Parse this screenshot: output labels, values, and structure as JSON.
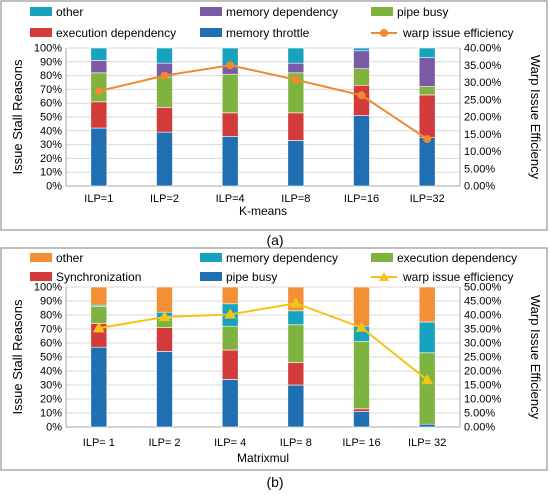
{
  "chart_data": [
    {
      "type": "bar",
      "stacked": true,
      "subcaption": "(a)",
      "title": "",
      "xlabel": "K-means",
      "ylabel": "Issue Stall Reasons",
      "y2label": "Warp Issue Efficiency",
      "ylim": [
        0,
        100
      ],
      "y2lim": [
        0,
        40
      ],
      "yticks": [
        "0%",
        "10%",
        "20%",
        "30%",
        "40%",
        "50%",
        "60%",
        "70%",
        "80%",
        "90%",
        "100%"
      ],
      "y2ticks": [
        "0.00%",
        "5.00%",
        "10.00%",
        "15.00%",
        "20.00%",
        "25.00%",
        "30.00%",
        "35.00%",
        "40.00%"
      ],
      "categories": [
        "ILP=1",
        "ILP=2",
        "ILP=4",
        "ILP=8",
        "ILP=16",
        "ILP=32"
      ],
      "legend": [
        {
          "name": "other",
          "color": "#17a2bd",
          "marker": "square"
        },
        {
          "name": "memory dependency",
          "color": "#7b5aa6",
          "marker": "square"
        },
        {
          "name": "pipe busy",
          "color": "#7fb33f",
          "marker": "square"
        },
        {
          "name": "execution dependency",
          "color": "#d33a3a",
          "marker": "square"
        },
        {
          "name": "memory throttle",
          "color": "#1f6fb2",
          "marker": "square"
        },
        {
          "name": "warp issue efficiency",
          "color": "#f08a30",
          "marker": "circle"
        }
      ],
      "stack_order": [
        "memory throttle",
        "execution dependency",
        "pipe busy",
        "memory dependency",
        "other"
      ],
      "series": [
        {
          "name": "memory throttle",
          "color": "#1f6fb2",
          "values": [
            42,
            39,
            36,
            33,
            51,
            35
          ]
        },
        {
          "name": "execution dependency",
          "color": "#d33a3a",
          "values": [
            19,
            18,
            17,
            20,
            22,
            31
          ]
        },
        {
          "name": "pipe busy",
          "color": "#7fb33f",
          "values": [
            21,
            22,
            28,
            29,
            12,
            6
          ]
        },
        {
          "name": "memory dependency",
          "color": "#7b5aa6",
          "values": [
            9,
            10,
            6,
            7,
            13,
            21
          ]
        },
        {
          "name": "other",
          "color": "#17a2bd",
          "values": [
            9,
            11,
            13,
            11,
            2,
            7
          ]
        }
      ],
      "line": {
        "name": "warp issue efficiency",
        "color": "#f08a30",
        "marker": "circle",
        "values": [
          27.5,
          32,
          35,
          30.8,
          26.3,
          13.6
        ]
      },
      "legend_position": "top",
      "grid": "horizontal"
    },
    {
      "type": "bar",
      "stacked": true,
      "subcaption": "(b)",
      "title": "",
      "xlabel": "Matrixmul",
      "ylabel": "Issue Stall Reasons",
      "y2label": "Warp Issue Efficiency",
      "ylim": [
        0,
        100
      ],
      "y2lim": [
        0,
        50
      ],
      "yticks": [
        "0%",
        "10%",
        "20%",
        "30%",
        "40%",
        "50%",
        "60%",
        "70%",
        "80%",
        "90%",
        "100%"
      ],
      "y2ticks": [
        "0.00%",
        "5.00%",
        "10.00%",
        "15.00%",
        "20.00%",
        "25.00%",
        "30.00%",
        "35.00%",
        "40.00%",
        "45.00%",
        "50.00%"
      ],
      "categories": [
        "ILP= 1",
        "ILP= 2",
        "ILP= 4",
        "ILP= 8",
        "ILP= 16",
        "ILP= 32"
      ],
      "legend": [
        {
          "name": "other",
          "color": "#f39035",
          "marker": "square"
        },
        {
          "name": "memory dependency",
          "color": "#17a2bd",
          "marker": "square"
        },
        {
          "name": "execution dependency",
          "color": "#7fb33f",
          "marker": "square"
        },
        {
          "name": "Synchronization",
          "color": "#d33a3a",
          "marker": "square"
        },
        {
          "name": "pipe busy",
          "color": "#1f6fb2",
          "marker": "square"
        },
        {
          "name": "warp issue efficiency",
          "color": "#f3c31a",
          "marker": "triangle"
        }
      ],
      "stack_order": [
        "pipe busy",
        "Synchronization",
        "execution dependency",
        "memory dependency",
        "other"
      ],
      "series": [
        {
          "name": "pipe busy",
          "color": "#1f6fb2",
          "values": [
            57,
            54,
            34,
            30,
            11,
            2
          ]
        },
        {
          "name": "Synchronization",
          "color": "#d33a3a",
          "values": [
            17,
            17,
            21,
            16,
            2,
            0
          ]
        },
        {
          "name": "execution dependency",
          "color": "#7fb33f",
          "values": [
            12,
            7,
            17,
            27,
            48,
            51
          ]
        },
        {
          "name": "memory dependency",
          "color": "#17a2bd",
          "values": [
            1,
            4,
            16,
            10,
            11,
            22
          ]
        },
        {
          "name": "other",
          "color": "#f39035",
          "values": [
            13,
            18,
            12,
            17,
            28,
            25
          ]
        }
      ],
      "line": {
        "name": "warp issue efficiency",
        "color": "#f3c31a",
        "marker": "triangle",
        "values": [
          35.3,
          39.3,
          40.2,
          44.2,
          35.5,
          16.8
        ]
      },
      "legend_position": "top",
      "grid": "horizontal"
    }
  ]
}
